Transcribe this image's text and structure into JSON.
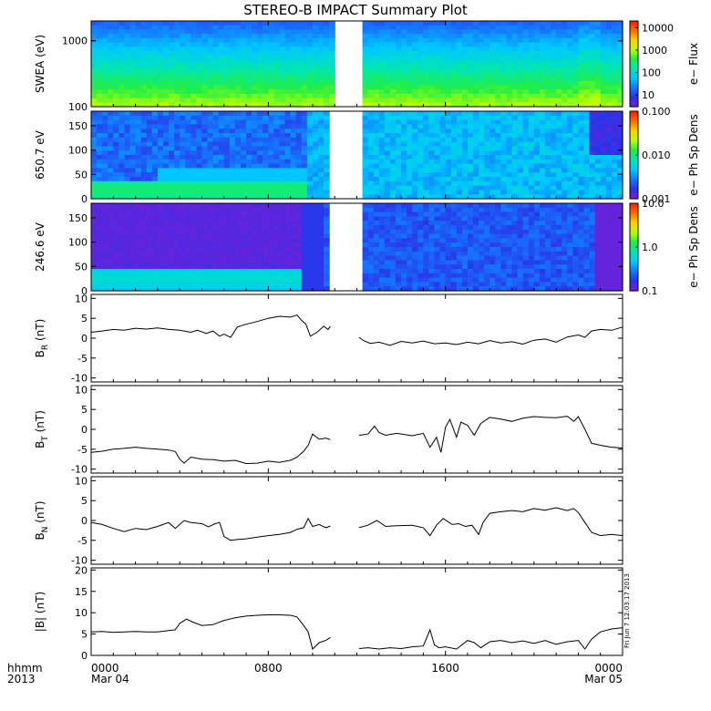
{
  "title": "STEREO-B IMPACT Summary Plot",
  "timestamp": "Fri Jun  7 12:03:17 2013",
  "xaxis": {
    "ticks": [
      {
        "t": 0,
        "top": "0000",
        "bottom": "Mar 04"
      },
      {
        "t": 8,
        "top": "0800",
        "bottom": ""
      },
      {
        "t": 16,
        "top": "1600",
        "bottom": ""
      },
      {
        "t": 24,
        "top": "0000",
        "bottom": "Mar 05"
      }
    ],
    "corner_label": "hhmm",
    "corner_year": "2013",
    "range_hours": [
      0,
      24
    ]
  },
  "colors": {
    "spectrogram_scale": [
      "#7a1fd8",
      "#2a32e8",
      "#1478ff",
      "#00c8ff",
      "#00e6b4",
      "#22ee44",
      "#b8ff00",
      "#ffd000",
      "#ff6a00",
      "#ff1a00"
    ],
    "gap": "#ffffff",
    "line": "#000000"
  },
  "chart_data": [
    {
      "type": "heatmap",
      "ylabel": "SWEA (eV)",
      "yscale": "log",
      "ylim": [
        100,
        2000
      ],
      "yticks": [
        "1000",
        "100"
      ],
      "ytick_values": [
        1000,
        100
      ],
      "colorbar": {
        "label": "e− Flux",
        "scale": "log",
        "range": [
          3,
          20000
        ],
        "ticks": [
          "10000",
          "1000",
          "100",
          "10"
        ],
        "tick_values": [
          10000,
          1000,
          100,
          10
        ]
      },
      "data_gaps_hours": [
        [
          10.95,
          12.2
        ]
      ],
      "profile_note_bands": [
        {
          "energy": 2000,
          "level": 0.15
        },
        {
          "energy": 1000,
          "level": 0.2
        },
        {
          "energy": 600,
          "level": 0.38
        },
        {
          "energy": 400,
          "level": 0.5
        },
        {
          "energy": 250,
          "level": 0.58
        },
        {
          "energy": 150,
          "level": 0.62
        },
        {
          "energy": 100,
          "level": 0.65
        }
      ]
    },
    {
      "type": "heatmap",
      "ylabel": "650.7 eV",
      "ylim": [
        0,
        180
      ],
      "yticks": [
        "150",
        "100",
        "50",
        "0"
      ],
      "ytick_values": [
        150,
        100,
        50,
        0
      ],
      "colorbar": {
        "label": "e− Ph Sp Dens",
        "scale": "log",
        "range": [
          0.001,
          0.1
        ],
        "ticks": [
          "0.100",
          "0.010",
          "0.001"
        ],
        "tick_values": [
          0.1,
          0.01,
          0.001
        ]
      },
      "data_gaps_hours": [
        [
          10.65,
          12.2
        ]
      ]
    },
    {
      "type": "heatmap",
      "ylabel": "246.6 eV",
      "ylim": [
        0,
        180
      ],
      "yticks": [
        "150",
        "100",
        "50",
        "0"
      ],
      "ytick_values": [
        150,
        100,
        50,
        0
      ],
      "colorbar": {
        "label": "e− Ph Sp Dens",
        "scale": "log",
        "range": [
          0.1,
          10.0
        ],
        "ticks": [
          "10.0",
          "1.0",
          "0.1"
        ],
        "tick_values": [
          10,
          1,
          0.1
        ]
      },
      "data_gaps_hours": [
        [
          10.65,
          12.2
        ]
      ]
    },
    {
      "type": "line",
      "ylabel": "B",
      "ylabel_sub": "R",
      "ylabel_unit": " (nT)",
      "ylim": [
        -11,
        11
      ],
      "yticks": [
        "10",
        "5",
        "0",
        "-5",
        "-10"
      ],
      "ytick_values": [
        10,
        5,
        0,
        -5,
        -10
      ],
      "series": [
        {
          "x": [
            0,
            0.5,
            1,
            1.5,
            2,
            2.5,
            3,
            3.5,
            4,
            4.5,
            4.8,
            5.2,
            5.5,
            5.8,
            6.0,
            6.3,
            6.6,
            7,
            7.5,
            8,
            8.5,
            9,
            9.3,
            9.5,
            9.7,
            9.9,
            10.2,
            10.5,
            10.7,
            10.8,
            null,
            12.1,
            12.3,
            12.6,
            13,
            13.5,
            14,
            14.5,
            15,
            15.5,
            16,
            16.5,
            17,
            17.5,
            18,
            18.5,
            19,
            19.5,
            20,
            20.5,
            21,
            21.5,
            22,
            22.3,
            22.6,
            23,
            23.5,
            24
          ],
          "y": [
            1.5,
            1.8,
            2.2,
            2.0,
            2.5,
            2.3,
            2.6,
            2.2,
            2.0,
            1.5,
            2.0,
            1.2,
            1.8,
            0.5,
            1.0,
            0.2,
            2.8,
            3.5,
            4.2,
            5.0,
            5.5,
            5.3,
            5.8,
            4.5,
            3.5,
            0.5,
            1.5,
            3.0,
            2.2,
            3.0,
            null,
            0.2,
            -0.6,
            -1.3,
            -1.0,
            -1.8,
            -0.8,
            -1.2,
            -0.7,
            -1.4,
            -1.2,
            -1.6,
            -1.0,
            -1.4,
            -0.6,
            -1.2,
            -0.9,
            -1.5,
            -0.5,
            -0.2,
            -1.0,
            0.3,
            0.8,
            0.2,
            1.8,
            2.2,
            2.0,
            2.8
          ]
        }
      ]
    },
    {
      "type": "line",
      "ylabel": "B",
      "ylabel_sub": "T",
      "ylabel_unit": " (nT)",
      "ylim": [
        -11,
        11
      ],
      "yticks": [
        "10",
        "5",
        "0",
        "-5",
        "-10"
      ],
      "ytick_values": [
        10,
        5,
        0,
        -5,
        -10
      ],
      "series": [
        {
          "x": [
            0,
            0.5,
            1,
            1.5,
            2,
            2.5,
            3,
            3.5,
            3.8,
            4.0,
            4.2,
            4.5,
            5,
            5.5,
            6,
            6.5,
            7,
            7.5,
            8,
            8.5,
            9,
            9.3,
            9.6,
            9.8,
            10.0,
            10.3,
            10.6,
            10.8,
            null,
            12.1,
            12.5,
            12.8,
            13.0,
            13.3,
            13.8,
            14.5,
            15,
            15.3,
            15.6,
            15.8,
            16.0,
            16.2,
            16.5,
            16.7,
            17.0,
            17.3,
            17.6,
            18,
            18.5,
            19,
            19.5,
            20,
            20.5,
            21,
            21.5,
            21.8,
            22.0,
            22.3,
            22.6,
            23,
            23.5,
            24
          ],
          "y": [
            -5.8,
            -5.5,
            -5.0,
            -4.8,
            -4.5,
            -4.8,
            -5.0,
            -5.2,
            -5.6,
            -7.5,
            -8.5,
            -7.0,
            -7.5,
            -7.6,
            -8.0,
            -7.8,
            -8.6,
            -8.5,
            -8.0,
            -8.3,
            -7.8,
            -7.0,
            -5.5,
            -4.0,
            -1.2,
            -2.5,
            -2.2,
            -2.6,
            null,
            -1.5,
            -1.2,
            0.8,
            -0.8,
            -1.5,
            -1.0,
            -1.6,
            -1.0,
            -4.5,
            -2.0,
            -5.8,
            0.5,
            2.5,
            -2.0,
            1.8,
            1.0,
            -1.5,
            1.5,
            3.0,
            2.6,
            2.0,
            2.8,
            3.2,
            3.0,
            2.9,
            3.3,
            2.0,
            3.2,
            0.0,
            -3.5,
            -4.0,
            -4.5,
            -4.7
          ]
        }
      ]
    },
    {
      "type": "line",
      "ylabel": "B",
      "ylabel_sub": "N",
      "ylabel_unit": " (nT)",
      "ylim": [
        -11,
        11
      ],
      "yticks": [
        "10",
        "5",
        "0",
        "-5",
        "-10"
      ],
      "ytick_values": [
        10,
        5,
        0,
        -5,
        -10
      ],
      "series": [
        {
          "x": [
            0,
            0.5,
            1,
            1.5,
            2,
            2.5,
            3,
            3.5,
            3.8,
            4.2,
            4.5,
            5,
            5.3,
            5.6,
            5.8,
            6.0,
            6.3,
            6.6,
            7,
            7.5,
            8,
            8.5,
            9,
            9.3,
            9.6,
            9.8,
            10.0,
            10.3,
            10.6,
            10.8,
            null,
            12.1,
            12.5,
            12.9,
            13.3,
            13.8,
            14.5,
            15,
            15.3,
            15.6,
            15.9,
            16.3,
            16.6,
            16.9,
            17.2,
            17.5,
            17.7,
            18,
            18.5,
            19,
            19.5,
            20,
            20.5,
            21,
            21.5,
            21.8,
            22.0,
            22.3,
            22.6,
            23,
            23.5,
            24
          ],
          "y": [
            -0.5,
            -1.0,
            -2.0,
            -2.8,
            -2.0,
            -2.3,
            -1.5,
            -0.5,
            -2.0,
            0.0,
            -0.5,
            -0.8,
            -1.6,
            -0.8,
            -0.5,
            -4.0,
            -5.0,
            -4.8,
            -4.6,
            -4.2,
            -3.8,
            -3.5,
            -3.0,
            -2.2,
            -1.8,
            0.5,
            -1.5,
            -1.0,
            -1.8,
            -1.4,
            null,
            -1.8,
            -1.2,
            0.0,
            -1.5,
            -1.3,
            -1.2,
            -1.8,
            -3.8,
            -1.2,
            0.5,
            -1.0,
            -0.8,
            -1.5,
            -1.2,
            -3.5,
            -0.5,
            1.8,
            2.2,
            2.5,
            2.2,
            3.0,
            2.6,
            3.2,
            2.5,
            3.0,
            2.0,
            -0.5,
            -3.0,
            -3.8,
            -3.5,
            -3.8
          ]
        }
      ]
    },
    {
      "type": "line",
      "ylabel": "|B| (nT)",
      "ylim": [
        0,
        20.5
      ],
      "yticks": [
        "20",
        "15",
        "10",
        "5",
        "0"
      ],
      "ytick_values": [
        20,
        15,
        10,
        5,
        0
      ],
      "series": [
        {
          "x": [
            0,
            0.5,
            1,
            1.5,
            2,
            2.5,
            3,
            3.5,
            3.8,
            4.0,
            4.3,
            4.6,
            5,
            5.5,
            6,
            6.5,
            7,
            7.5,
            8,
            8.5,
            9,
            9.3,
            9.6,
            9.8,
            10.0,
            10.3,
            10.6,
            10.8,
            null,
            12.1,
            12.5,
            13,
            13.5,
            14,
            14.5,
            15,
            15.3,
            15.5,
            15.7,
            16.0,
            16.5,
            17,
            17.3,
            17.6,
            18,
            18.5,
            19,
            19.5,
            20,
            20.5,
            21,
            21.5,
            22,
            22.3,
            22.6,
            23,
            23.5,
            24
          ],
          "y": [
            5.5,
            5.6,
            5.4,
            5.5,
            5.6,
            5.5,
            5.5,
            5.8,
            6.0,
            7.5,
            8.5,
            7.8,
            7.0,
            7.2,
            8.2,
            8.8,
            9.2,
            9.4,
            9.5,
            9.5,
            9.4,
            9.0,
            7.0,
            5.5,
            1.5,
            3.0,
            3.5,
            4.2,
            null,
            1.6,
            1.8,
            1.5,
            1.8,
            1.6,
            2.0,
            2.2,
            6.0,
            2.5,
            1.8,
            2.0,
            1.5,
            3.5,
            3.0,
            1.8,
            3.2,
            3.5,
            3.0,
            3.4,
            2.8,
            3.5,
            2.6,
            3.2,
            3.5,
            1.5,
            3.8,
            5.5,
            6.2,
            6.5
          ]
        }
      ]
    }
  ]
}
